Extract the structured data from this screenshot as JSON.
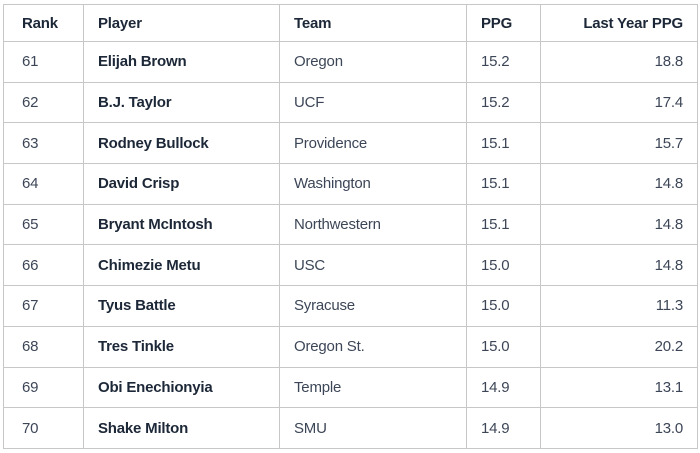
{
  "colors": {
    "header_text": "#1c2737",
    "body_text": "#3c4657",
    "player_text": "#1c2737",
    "border": "#c7c7c7",
    "background": "#ffffff"
  },
  "chart_data": {
    "type": "table",
    "title": "",
    "columns": [
      "Rank",
      "Player",
      "Team",
      "PPG",
      "Last Year PPG"
    ],
    "rows": [
      {
        "rank": "61",
        "player": "Elijah Brown",
        "team": "Oregon",
        "ppg": "15.2",
        "last_year_ppg": "18.8"
      },
      {
        "rank": "62",
        "player": "B.J. Taylor",
        "team": "UCF",
        "ppg": "15.2",
        "last_year_ppg": "17.4"
      },
      {
        "rank": "63",
        "player": "Rodney Bullock",
        "team": "Providence",
        "ppg": "15.1",
        "last_year_ppg": "15.7"
      },
      {
        "rank": "64",
        "player": "David Crisp",
        "team": "Washington",
        "ppg": "15.1",
        "last_year_ppg": "14.8"
      },
      {
        "rank": "65",
        "player": "Bryant McIntosh",
        "team": "Northwestern",
        "ppg": "15.1",
        "last_year_ppg": "14.8"
      },
      {
        "rank": "66",
        "player": "Chimezie Metu",
        "team": "USC",
        "ppg": "15.0",
        "last_year_ppg": "14.8"
      },
      {
        "rank": "67",
        "player": "Tyus Battle",
        "team": "Syracuse",
        "ppg": "15.0",
        "last_year_ppg": "11.3"
      },
      {
        "rank": "68",
        "player": "Tres Tinkle",
        "team": "Oregon St.",
        "ppg": "15.0",
        "last_year_ppg": "20.2"
      },
      {
        "rank": "69",
        "player": "Obi Enechionyia",
        "team": "Temple",
        "ppg": "14.9",
        "last_year_ppg": "13.1"
      },
      {
        "rank": "70",
        "player": "Shake Milton",
        "team": "SMU",
        "ppg": "14.9",
        "last_year_ppg": "13.0"
      }
    ]
  }
}
